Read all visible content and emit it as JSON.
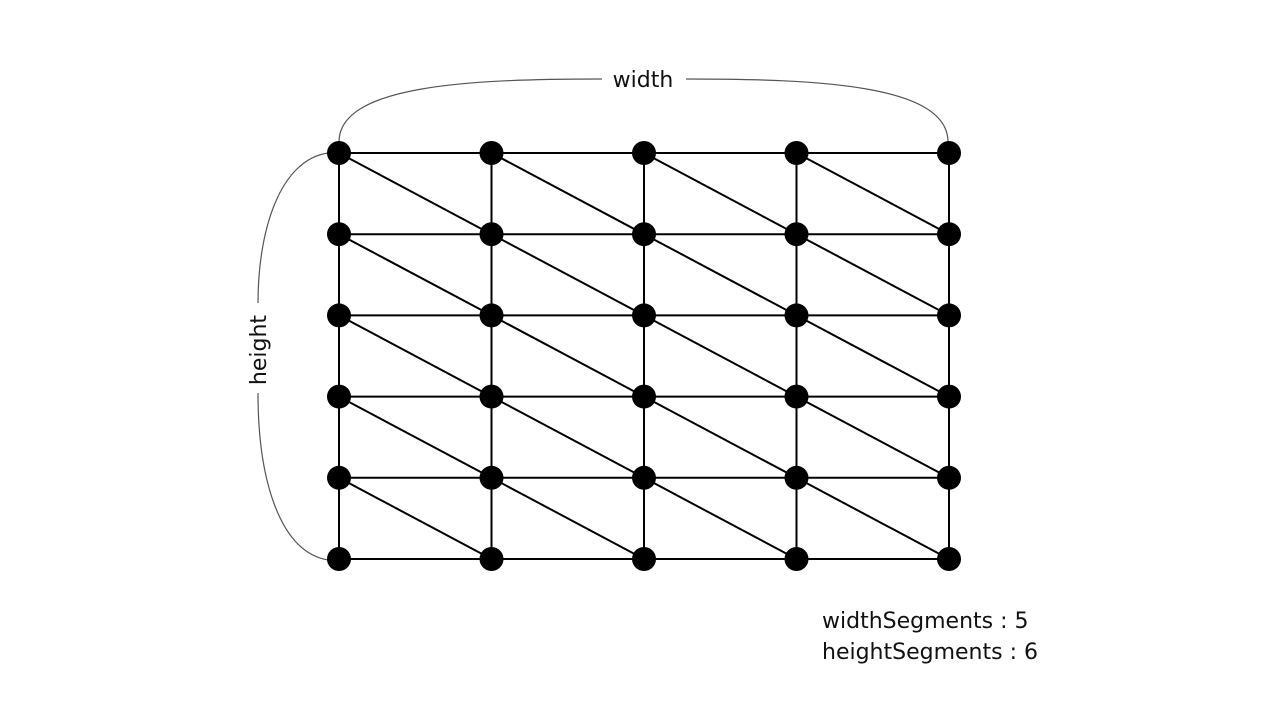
{
  "labels": {
    "width": "width",
    "height": "height"
  },
  "params": [
    {
      "name": "widthSegments",
      "separator": " : ",
      "value": "5"
    },
    {
      "name": "heightSegments",
      "separator": " : ",
      "value": "6"
    }
  ],
  "grid": {
    "columns": 5,
    "rows": 6
  },
  "colors": {
    "mesh": "#000000",
    "bracket": "#555555"
  }
}
